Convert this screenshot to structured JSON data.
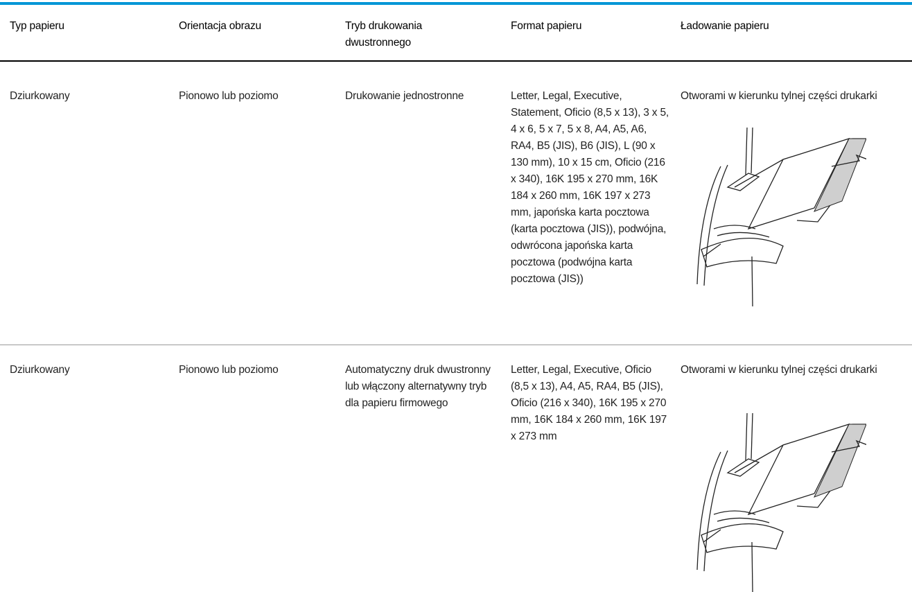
{
  "table": {
    "headers": [
      "Typ papieru",
      "Orientacja obrazu",
      "Tryb drukowania dwustronnego",
      "Format papieru",
      "Ładowanie papieru"
    ],
    "rows": [
      [
        "Dziurkowany",
        "Pionowo lub poziomo",
        "Drukowanie jednostronne",
        "Letter, Legal, Executive, Statement, Oficio (8,5 x 13), 3 x 5, 4 x 6, 5 x 7, 5 x 8, A4, A5, A6, RA4, B5 (JIS), B6 (JIS), L (90 x 130 mm), 10 x 15 cm, Oficio (216 x 340), 16K 195 x 270 mm, 16K 184 x 260 mm, 16K 197 x 273 mm, japońska karta pocztowa (karta pocztowa (JIS)), podwójna, odwrócona japońska karta pocztowa (podwójna karta pocztowa (JIS))",
        "Otworami w kierunku tylnej części drukarki"
      ],
      [
        "Dziurkowany",
        "Pionowo lub poziomo",
        "Automatyczny druk dwustronny lub włączony alternatywny tryb dla papieru firmowego",
        "Letter, Legal, Executive, Oficio (8,5 x 13), A4, A5, RA4, B5 (JIS), Oficio (216 x 340), 16K 195 x 270 mm, 16K 184 x 260 mm, 16K 197 x 273 mm",
        "Otworami w kierunku tylnej części drukarki"
      ]
    ]
  }
}
